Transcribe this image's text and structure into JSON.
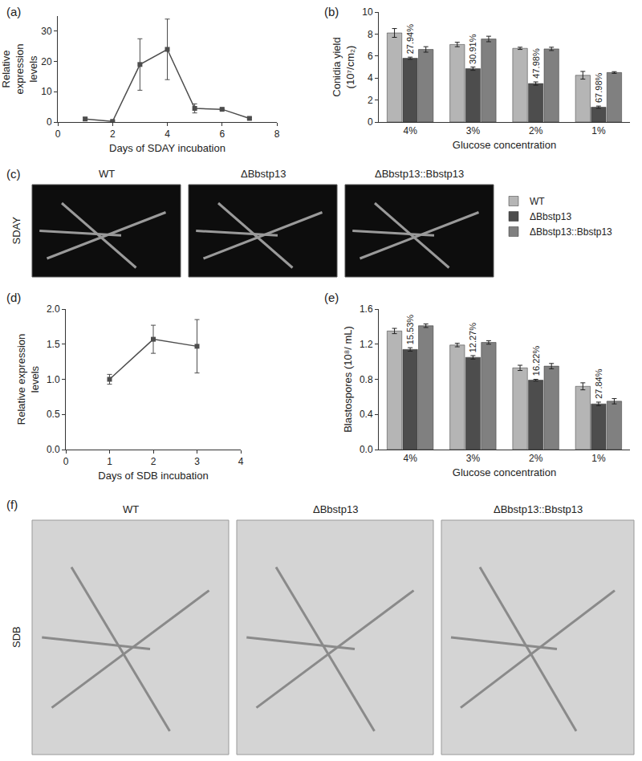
{
  "chart_data": [
    {
      "panel": "(a)",
      "type": "line",
      "x_label": "Days of SDAY incubation",
      "y_label": "Relative expression levels",
      "x": [
        1,
        2,
        3,
        4,
        5,
        6,
        7
      ],
      "values": [
        1.0,
        0.2,
        19,
        24,
        4.5,
        4.2,
        1.2
      ],
      "errors": [
        0.5,
        0.2,
        8.5,
        10,
        1.5,
        0.3,
        0.3
      ],
      "color": "#4d4d4d",
      "marker": "square",
      "xlim": [
        0,
        8
      ],
      "xticks": [
        0,
        2,
        4,
        6,
        8
      ],
      "ylim": [
        0,
        35
      ],
      "yticks": [
        0,
        10,
        20,
        30
      ],
      "grid": false
    },
    {
      "panel": "(b)",
      "type": "bar",
      "x_label": "Glucose concentration",
      "y_label": "Conidia yield (10⁷/cm₂)",
      "categories": [
        "4%",
        "3%",
        "2%",
        "1%"
      ],
      "series": [
        {
          "name": "WT",
          "color": "#b5b5b5",
          "values": [
            8.1,
            7.05,
            6.7,
            4.25
          ],
          "errors": [
            0.4,
            0.2,
            0.1,
            0.35
          ]
        },
        {
          "name": "ΔBbstp13",
          "color": "#4d4d4d",
          "values": [
            5.8,
            4.85,
            3.5,
            1.35
          ],
          "errors": [
            0.1,
            0.15,
            0.15,
            0.1
          ]
        },
        {
          "name": "ΔBbstp13::Bbstp13",
          "color": "#808080",
          "values": [
            6.6,
            7.55,
            6.65,
            4.5
          ],
          "errors": [
            0.25,
            0.25,
            0.15,
            0.08
          ]
        }
      ],
      "annotations": [
        {
          "category": "4%",
          "series": "ΔBbstp13",
          "text": "27.94%"
        },
        {
          "category": "3%",
          "series": "ΔBbstp13",
          "text": "30.91%"
        },
        {
          "category": "2%",
          "series": "ΔBbstp13",
          "text": "47.98%"
        },
        {
          "category": "1%",
          "series": "ΔBbstp13",
          "text": "67.98%"
        }
      ],
      "ylim": [
        0,
        10
      ],
      "yticks": [
        0,
        2,
        4,
        6,
        8,
        10
      ],
      "legend": "right",
      "grid": false
    },
    {
      "panel": "(c)",
      "type": "image",
      "row_label": "SDAY",
      "labels": [
        "WT",
        "ΔBbstp13",
        "ΔBbstp13::Bbstp13"
      ]
    },
    {
      "panel": "(d)",
      "type": "line",
      "x_label": "Days of SDB incubation",
      "y_label": "Relative expression levels",
      "x": [
        1,
        2,
        3
      ],
      "values": [
        1.0,
        1.57,
        1.47
      ],
      "errors": [
        0.07,
        0.2,
        0.38
      ],
      "color": "#4d4d4d",
      "marker": "square",
      "xlim": [
        0,
        4
      ],
      "xticks": [
        0,
        1,
        2,
        3,
        4
      ],
      "ylim": [
        0,
        2
      ],
      "yticks": [
        {
          "value": 0,
          "label": "0.0"
        },
        0.5,
        {
          "value": 1,
          "label": "1.0"
        },
        1.5,
        {
          "value": 2,
          "label": "2.0"
        }
      ],
      "grid": false
    },
    {
      "panel": "(e)",
      "type": "bar",
      "x_label": "Glucose concentration",
      "y_label": "Blastospores (10⁸/ mL)",
      "categories": [
        "4%",
        "3%",
        "2%",
        "1%"
      ],
      "series": [
        {
          "name": "WT",
          "color": "#b5b5b5",
          "values": [
            1.35,
            1.19,
            0.93,
            0.72
          ],
          "errors": [
            0.03,
            0.02,
            0.03,
            0.04
          ]
        },
        {
          "name": "ΔBbstp13",
          "color": "#4d4d4d",
          "values": [
            1.14,
            1.05,
            0.79,
            0.52
          ],
          "errors": [
            0.02,
            0.02,
            0.01,
            0.02
          ]
        },
        {
          "name": "ΔBbstp13::Bbstp13",
          "color": "#808080",
          "values": [
            1.41,
            1.22,
            0.95,
            0.55
          ],
          "errors": [
            0.02,
            0.02,
            0.03,
            0.03
          ]
        }
      ],
      "annotations": [
        {
          "category": "4%",
          "series": "ΔBbstp13",
          "text": "15.53%"
        },
        {
          "category": "3%",
          "series": "ΔBbstp13",
          "text": "12.27%"
        },
        {
          "category": "2%",
          "series": "ΔBbstp13",
          "text": "16.22%"
        },
        {
          "category": "1%",
          "series": "ΔBbstp13",
          "text": "27.84%"
        }
      ],
      "ylim": [
        0,
        1.6
      ],
      "yticks": [
        {
          "value": 0,
          "label": "0.0"
        },
        0.4,
        0.8,
        1.2,
        1.6
      ],
      "grid": false
    },
    {
      "panel": "(f)",
      "type": "image",
      "row_label": "SDB",
      "labels": [
        "WT",
        "ΔBbstp13",
        "ΔBbstp13::Bbstp13"
      ]
    }
  ]
}
